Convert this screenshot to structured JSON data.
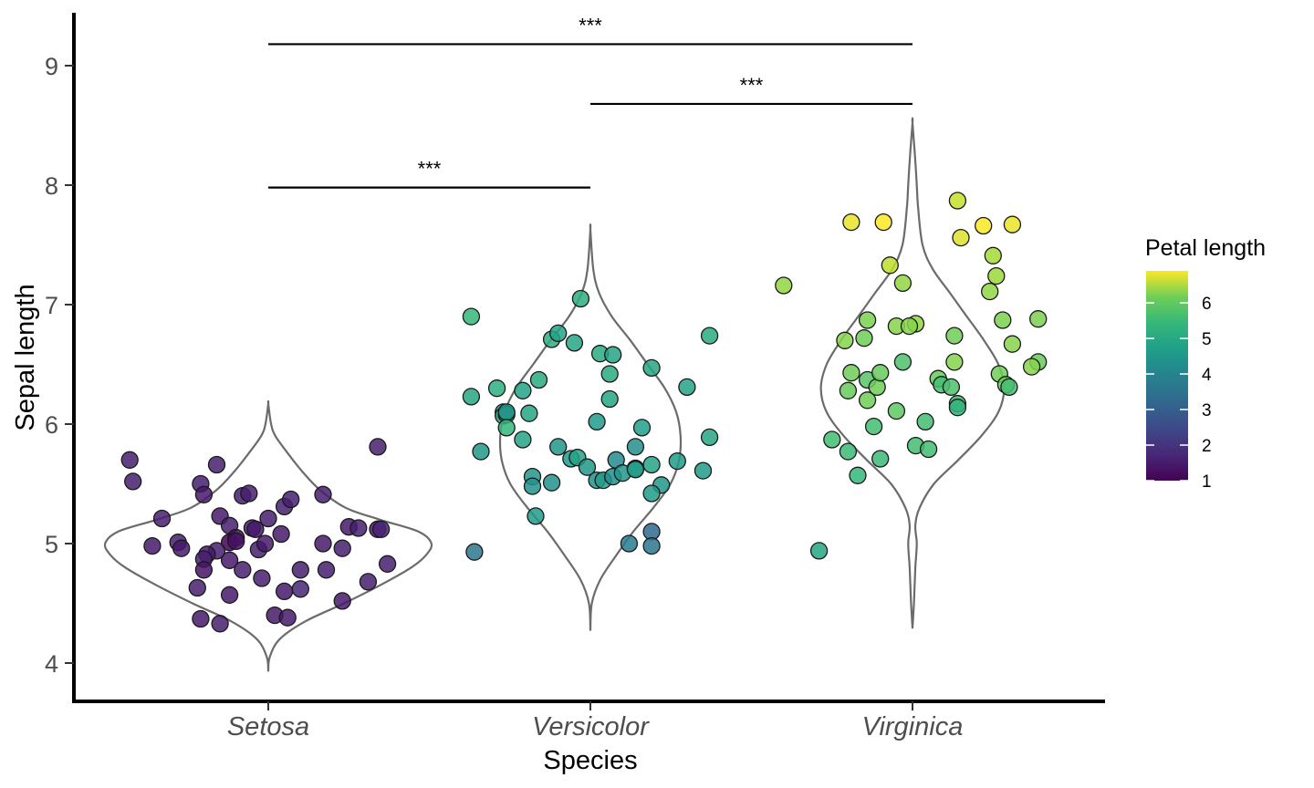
{
  "chart_data": {
    "type": "scatter",
    "subtype": "violin-jitter",
    "xlabel": "Species",
    "ylabel": "Sepal length",
    "categories": [
      "Setosa",
      "Versicolor",
      "Virginica"
    ],
    "ylim": [
      3.65,
      9.45
    ],
    "yticks": [
      4,
      5,
      6,
      7,
      8,
      9
    ],
    "grid": false,
    "legend": {
      "title": "Petal length",
      "position": "right",
      "type": "colorbar",
      "palette": "viridis",
      "range": [
        1.0,
        6.9
      ],
      "ticks": [
        1,
        2,
        3,
        4,
        5,
        6
      ]
    },
    "violin": {
      "stroke": "#6b6b6b",
      "Setosa": {
        "min": 3.93,
        "max": 6.17,
        "shape": [
          [
            3.93,
            0
          ],
          [
            4.05,
            0.01
          ],
          [
            4.2,
            0.08
          ],
          [
            4.35,
            0.26
          ],
          [
            4.5,
            0.53
          ],
          [
            4.65,
            0.78
          ],
          [
            4.8,
            1.0
          ],
          [
            4.9,
            1.1
          ],
          [
            5.0,
            1.14
          ],
          [
            5.1,
            1.05
          ],
          [
            5.2,
            0.78
          ],
          [
            5.3,
            0.54
          ],
          [
            5.45,
            0.36
          ],
          [
            5.6,
            0.24
          ],
          [
            5.75,
            0.14
          ],
          [
            5.9,
            0.05
          ],
          [
            6.0,
            0.02
          ],
          [
            6.17,
            0
          ]
        ]
      },
      "Versicolor": {
        "min": 4.27,
        "max": 7.63,
        "shape": [
          [
            4.27,
            0
          ],
          [
            4.5,
            0.01
          ],
          [
            4.7,
            0.07
          ],
          [
            4.9,
            0.18
          ],
          [
            5.1,
            0.3
          ],
          [
            5.3,
            0.44
          ],
          [
            5.5,
            0.56
          ],
          [
            5.7,
            0.62
          ],
          [
            5.9,
            0.63
          ],
          [
            6.1,
            0.6
          ],
          [
            6.3,
            0.52
          ],
          [
            6.5,
            0.4
          ],
          [
            6.7,
            0.28
          ],
          [
            6.9,
            0.15
          ],
          [
            7.1,
            0.06
          ],
          [
            7.3,
            0.02
          ],
          [
            7.63,
            0
          ]
        ]
      },
      "Virginica": {
        "min": 4.29,
        "max": 8.52,
        "shape": [
          [
            4.29,
            0
          ],
          [
            4.5,
            0.01
          ],
          [
            4.8,
            0.02
          ],
          [
            5.0,
            0.03
          ],
          [
            5.15,
            0.02
          ],
          [
            5.3,
            0.05
          ],
          [
            5.5,
            0.15
          ],
          [
            5.7,
            0.32
          ],
          [
            5.9,
            0.48
          ],
          [
            6.1,
            0.6
          ],
          [
            6.3,
            0.64
          ],
          [
            6.5,
            0.6
          ],
          [
            6.7,
            0.5
          ],
          [
            6.9,
            0.38
          ],
          [
            7.1,
            0.26
          ],
          [
            7.3,
            0.14
          ],
          [
            7.5,
            0.07
          ],
          [
            7.8,
            0.04
          ],
          [
            8.0,
            0.03
          ],
          [
            8.2,
            0.02
          ],
          [
            8.52,
            0
          ]
        ]
      }
    },
    "series": [
      {
        "name": "Setosa",
        "points": [
          [
            -0.43,
            5.7,
            1.5
          ],
          [
            -0.42,
            5.52,
            1.5
          ],
          [
            -0.33,
            5.21,
            1.5
          ],
          [
            -0.36,
            4.98,
            1.4
          ],
          [
            -0.28,
            5.01,
            1.5
          ],
          [
            -0.27,
            4.96,
            1.4
          ],
          [
            -0.16,
            5.66,
            1.5
          ],
          [
            -0.21,
            5.5,
            1.5
          ],
          [
            -0.2,
            5.41,
            1.4
          ],
          [
            -0.08,
            5.4,
            1.5
          ],
          [
            -0.06,
            5.42,
            1.5
          ],
          [
            -0.15,
            5.23,
            1.4
          ],
          [
            -0.12,
            5.15,
            1.5
          ],
          [
            -0.05,
            5.13,
            1.5
          ],
          [
            -0.1,
            5.05,
            1.2
          ],
          [
            -0.12,
            5.01,
            1.0
          ],
          [
            -0.1,
            5.02,
            1.3
          ],
          [
            -0.03,
            4.95,
            1.5
          ],
          [
            -0.04,
            5.12,
            1.4
          ],
          [
            0.0,
            5.21,
            1.5
          ],
          [
            0.05,
            5.31,
            1.5
          ],
          [
            0.07,
            5.37,
            1.5
          ],
          [
            0.04,
            5.08,
            1.4
          ],
          [
            -0.01,
            5.0,
            1.4
          ],
          [
            -0.16,
            4.94,
            1.5
          ],
          [
            -0.19,
            4.91,
            1.4
          ],
          [
            -0.2,
            4.87,
            1.5
          ],
          [
            -0.12,
            4.86,
            1.4
          ],
          [
            -0.08,
            4.78,
            1.5
          ],
          [
            -0.2,
            4.78,
            1.3
          ],
          [
            -0.22,
            4.63,
            1.5
          ],
          [
            -0.12,
            4.57,
            1.4
          ],
          [
            -0.02,
            4.71,
            1.5
          ],
          [
            0.05,
            4.6,
            1.4
          ],
          [
            0.1,
            4.78,
            1.5
          ],
          [
            0.1,
            4.62,
            1.6
          ],
          [
            0.18,
            4.78,
            1.5
          ],
          [
            0.17,
            5.41,
            1.5
          ],
          [
            0.17,
            5.0,
            1.4
          ],
          [
            0.23,
            4.96,
            1.5
          ],
          [
            0.25,
            5.14,
            1.4
          ],
          [
            0.28,
            5.13,
            1.5
          ],
          [
            0.34,
            5.12,
            1.4
          ],
          [
            0.35,
            5.12,
            1.6
          ],
          [
            0.34,
            5.81,
            1.5
          ],
          [
            0.37,
            4.83,
            1.5
          ],
          [
            0.31,
            4.68,
            1.5
          ],
          [
            0.23,
            4.52,
            1.4
          ],
          [
            0.02,
            4.4,
            1.4
          ],
          [
            0.06,
            4.38,
            1.4
          ],
          [
            -0.21,
            4.37,
            1.4
          ],
          [
            -0.15,
            4.33,
            1.5
          ]
        ]
      },
      {
        "name": "Versicolor",
        "points": [
          [
            -0.37,
            6.9,
            4.9
          ],
          [
            -0.37,
            6.23,
            4.5
          ],
          [
            -0.34,
            5.77,
            4.1
          ],
          [
            -0.29,
            6.3,
            4.7
          ],
          [
            -0.27,
            6.1,
            4.5
          ],
          [
            -0.27,
            6.07,
            4.8
          ],
          [
            -0.26,
            6.08,
            4.7
          ],
          [
            -0.26,
            6.1,
            4.0
          ],
          [
            -0.26,
            5.97,
            4.9
          ],
          [
            -0.21,
            6.28,
            4.4
          ],
          [
            -0.19,
            6.09,
            4.5
          ],
          [
            -0.21,
            5.87,
            4.4
          ],
          [
            -0.16,
            6.37,
            4.6
          ],
          [
            -0.18,
            5.56,
            4.1
          ],
          [
            -0.18,
            5.48,
            4.0
          ],
          [
            -0.17,
            5.23,
            4.2
          ],
          [
            -0.1,
            5.81,
            4.1
          ],
          [
            -0.12,
            5.51,
            4.0
          ],
          [
            -0.12,
            6.71,
            4.7
          ],
          [
            -0.1,
            6.76,
            4.4
          ],
          [
            -0.05,
            6.68,
            4.5
          ],
          [
            -0.03,
            7.05,
            4.7
          ],
          [
            -0.06,
            5.71,
            4.2
          ],
          [
            -0.04,
            5.72,
            4.4
          ],
          [
            -0.01,
            5.64,
            4.1
          ],
          [
            0.03,
            6.59,
            4.6
          ],
          [
            0.07,
            6.58,
            4.4
          ],
          [
            0.06,
            6.42,
            4.6
          ],
          [
            0.06,
            6.21,
            4.5
          ],
          [
            0.02,
            6.02,
            4.2
          ],
          [
            0.02,
            5.53,
            4.0
          ],
          [
            0.04,
            5.53,
            4.3
          ],
          [
            0.07,
            5.56,
            3.9
          ],
          [
            0.08,
            5.7,
            3.8
          ],
          [
            0.1,
            5.59,
            4.1
          ],
          [
            0.14,
            5.63,
            4.5
          ],
          [
            0.14,
            5.81,
            3.9
          ],
          [
            0.14,
            5.62,
            4.2
          ],
          [
            0.16,
            5.97,
            4.3
          ],
          [
            0.19,
            6.47,
            4.5
          ],
          [
            0.19,
            5.66,
            4.4
          ],
          [
            0.22,
            5.49,
            4.1
          ],
          [
            0.27,
            5.69,
            4.2
          ],
          [
            0.3,
            6.31,
            4.4
          ],
          [
            0.37,
            6.74,
            4.6
          ],
          [
            0.37,
            5.89,
            4.5
          ],
          [
            0.35,
            5.61,
            4.2
          ],
          [
            -0.36,
            4.93,
            3.3
          ],
          [
            0.19,
            5.1,
            3.0
          ],
          [
            0.19,
            4.98,
            3.3
          ],
          [
            0.12,
            5.0,
            3.5
          ],
          [
            0.19,
            5.42,
            4.2
          ]
        ]
      },
      {
        "name": "Virginica",
        "points": [
          [
            -0.4,
            7.16,
            5.9
          ],
          [
            -0.19,
            7.69,
            6.7
          ],
          [
            -0.09,
            7.69,
            6.9
          ],
          [
            -0.07,
            7.33,
            6.3
          ],
          [
            -0.03,
            7.18,
            5.9
          ],
          [
            -0.21,
            6.7,
            5.8
          ],
          [
            -0.14,
            6.87,
            5.7
          ],
          [
            -0.15,
            6.72,
            5.6
          ],
          [
            -0.19,
            6.43,
            5.6
          ],
          [
            -0.2,
            6.28,
            5.5
          ],
          [
            -0.14,
            6.37,
            5.3
          ],
          [
            -0.14,
            6.2,
            5.6
          ],
          [
            -0.11,
            6.31,
            5.6
          ],
          [
            -0.1,
            6.43,
            5.5
          ],
          [
            -0.03,
            6.52,
            5.2
          ],
          [
            -0.05,
            6.82,
            5.8
          ],
          [
            0.01,
            6.84,
            5.9
          ],
          [
            -0.05,
            6.11,
            5.4
          ],
          [
            -0.12,
            5.98,
            5.1
          ],
          [
            -0.25,
            5.87,
            5.1
          ],
          [
            -0.2,
            5.77,
            5.0
          ],
          [
            -0.17,
            5.57,
            4.9
          ],
          [
            -0.1,
            5.71,
            5.0
          ],
          [
            0.01,
            5.82,
            5.1
          ],
          [
            0.05,
            5.79,
            5.1
          ],
          [
            -0.29,
            4.94,
            4.5
          ],
          [
            0.08,
            6.38,
            5.5
          ],
          [
            0.09,
            6.33,
            5.1
          ],
          [
            0.12,
            6.31,
            5.2
          ],
          [
            0.13,
            6.74,
            5.6
          ],
          [
            0.13,
            6.52,
            5.8
          ],
          [
            0.04,
            6.02,
            5.1
          ],
          [
            0.14,
            6.17,
            5.1
          ],
          [
            0.14,
            6.14,
            4.8
          ],
          [
            0.14,
            7.87,
            6.4
          ],
          [
            0.15,
            7.56,
            6.6
          ],
          [
            0.22,
            7.66,
            6.9
          ],
          [
            0.31,
            7.67,
            6.7
          ],
          [
            0.25,
            7.41,
            6.1
          ],
          [
            0.26,
            7.24,
            6.0
          ],
          [
            0.24,
            7.11,
            5.9
          ],
          [
            0.28,
            6.87,
            5.7
          ],
          [
            0.31,
            6.67,
            5.8
          ],
          [
            0.27,
            6.42,
            5.6
          ],
          [
            0.29,
            6.33,
            5.5
          ],
          [
            0.3,
            6.31,
            5.1
          ],
          [
            0.39,
            6.88,
            5.7
          ],
          [
            0.39,
            6.52,
            5.5
          ],
          [
            0.37,
            6.48,
            5.8
          ],
          [
            -0.01,
            6.82,
            5.8
          ]
        ]
      }
    ],
    "comparisons": [
      {
        "groups": [
          "Setosa",
          "Versicolor"
        ],
        "label": "***",
        "y": 7.98
      },
      {
        "groups": [
          "Versicolor",
          "Virginica"
        ],
        "label": "***",
        "y": 8.68
      },
      {
        "groups": [
          "Setosa",
          "Virginica"
        ],
        "label": "***",
        "y": 9.18
      }
    ]
  }
}
